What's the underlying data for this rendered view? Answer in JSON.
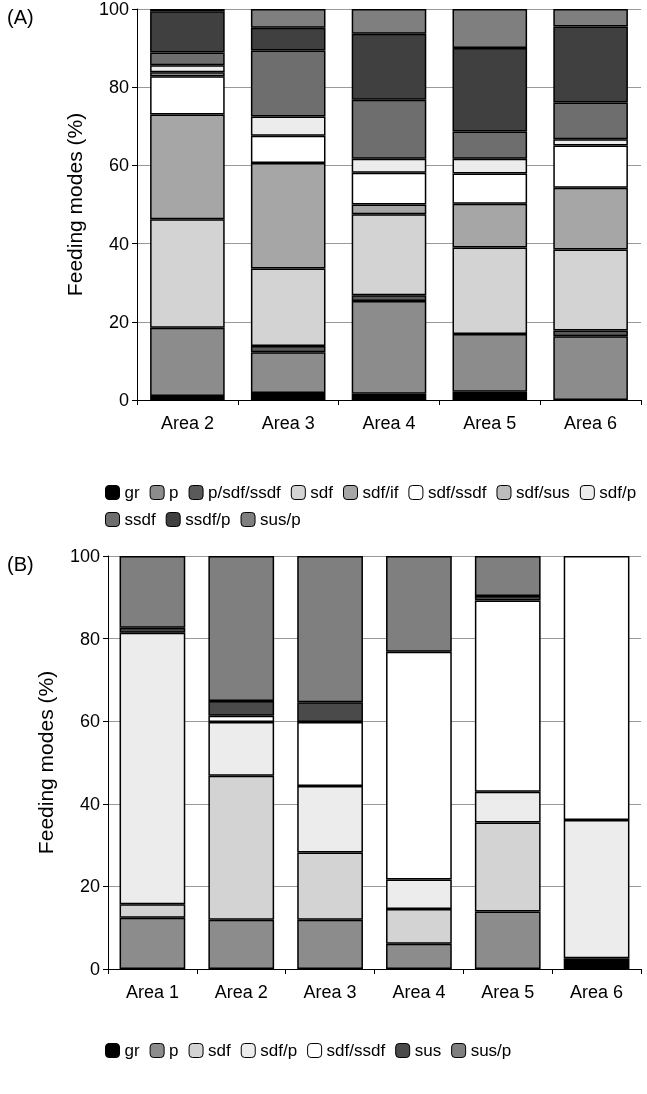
{
  "chart_data": [
    {
      "type": "bar",
      "title": "(A)",
      "ylabel": "Feeding modes (%)",
      "categories": [
        "Area 2",
        "Area 3",
        "Area 4",
        "Area 5",
        "Area 6"
      ],
      "stacked": true,
      "ylim": [
        0,
        100
      ],
      "yticks": [
        0,
        20,
        40,
        60,
        80,
        100
      ],
      "grid": "y",
      "legend": "bottom",
      "series": [
        {
          "name": "gr",
          "color": "#000000",
          "values": [
            1.0,
            1.8,
            1.6,
            2.1,
            0
          ]
        },
        {
          "name": "p",
          "color": "#8c8c8c",
          "values": [
            17.5,
            10.4,
            23.7,
            14.8,
            16.3
          ]
        },
        {
          "name": "p/sdf/ssdf",
          "color": "#5a5a5a",
          "values": [
            0,
            1.6,
            1.5,
            0,
            1.5
          ]
        },
        {
          "name": "sdf",
          "color": "#d3d3d3",
          "values": [
            27.7,
            19.8,
            20.7,
            22.1,
            20.7
          ]
        },
        {
          "name": "sdf/if",
          "color": "#a6a6a6",
          "values": [
            26.8,
            27.0,
            2.5,
            11.2,
            15.8
          ]
        },
        {
          "name": "sdf/ssdf",
          "color": "#ffffff",
          "values": [
            9.8,
            7.0,
            8.1,
            7.7,
            10.8
          ]
        },
        {
          "name": "sdf/sus",
          "color": "#bcbcbc",
          "values": [
            1.0,
            0,
            0,
            0,
            0
          ]
        },
        {
          "name": "sdf/p",
          "color": "#ececec",
          "values": [
            1.8,
            4.9,
            3.6,
            3.8,
            1.6
          ]
        },
        {
          "name": "ssdf",
          "color": "#6e6e6e",
          "values": [
            3.3,
            16.9,
            15.1,
            7.0,
            9.4
          ]
        },
        {
          "name": "ssdf/p",
          "color": "#404040",
          "values": [
            10.5,
            5.8,
            16.9,
            21.3,
            19.4
          ]
        },
        {
          "name": "sus/p",
          "color": "#7f7f7f",
          "values": [
            0.6,
            4.8,
            6.3,
            10.0,
            4.5
          ]
        }
      ]
    },
    {
      "type": "bar",
      "title": "(B)",
      "ylabel": "Feeding modes (%)",
      "categories": [
        "Area 1",
        "Area 2",
        "Area 3",
        "Area 4",
        "Area 5",
        "Area 6"
      ],
      "stacked": true,
      "ylim": [
        0,
        100
      ],
      "yticks": [
        0,
        20,
        40,
        60,
        80,
        100
      ],
      "grid": "y",
      "legend": "bottom",
      "series": [
        {
          "name": "gr",
          "color": "#000000",
          "values": [
            0,
            0,
            0,
            0,
            0,
            2.6
          ]
        },
        {
          "name": "p",
          "color": "#8c8c8c",
          "values": [
            12.4,
            11.9,
            11.9,
            6.1,
            13.9,
            0
          ]
        },
        {
          "name": "sdf",
          "color": "#d3d3d3",
          "values": [
            3.3,
            34.9,
            16.3,
            8.4,
            21.6,
            0
          ]
        },
        {
          "name": "sdf/p",
          "color": "#ececec",
          "values": [
            65.7,
            13.0,
            16.1,
            7.2,
            7.4,
            33.5
          ]
        },
        {
          "name": "sdf/ssdf",
          "color": "#ffffff",
          "values": [
            0,
            1.5,
            15.5,
            55.1,
            46.3,
            63.9
          ]
        },
        {
          "name": "sus",
          "color": "#4a4a4a",
          "values": [
            1.2,
            3.6,
            4.8,
            0,
            1.1,
            0
          ]
        },
        {
          "name": "sus/p",
          "color": "#7f7f7f",
          "values": [
            17.4,
            35.1,
            35.4,
            23.2,
            9.7,
            0
          ]
        }
      ]
    }
  ]
}
